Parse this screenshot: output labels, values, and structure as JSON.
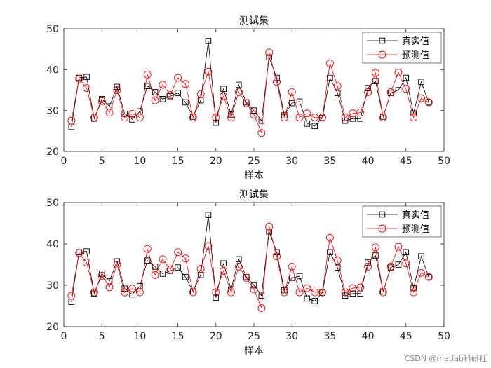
{
  "watermark": "CSDN @matlab科研社",
  "chart_data": [
    {
      "type": "line",
      "title": "测试集",
      "xlabel": "样本",
      "ylabel": "",
      "xlim": [
        0,
        50
      ],
      "ylim": [
        20,
        50
      ],
      "xticks": [
        0,
        5,
        10,
        15,
        20,
        25,
        30,
        35,
        40,
        45,
        50
      ],
      "yticks": [
        20,
        30,
        40,
        50
      ],
      "legend_position": "top-right",
      "x": [
        1,
        2,
        3,
        4,
        5,
        6,
        7,
        8,
        9,
        10,
        11,
        12,
        13,
        14,
        15,
        16,
        17,
        18,
        19,
        20,
        21,
        22,
        23,
        24,
        25,
        26,
        27,
        28,
        29,
        30,
        31,
        32,
        33,
        34,
        35,
        36,
        37,
        38,
        39,
        40,
        41,
        42,
        43,
        44,
        45,
        46,
        47,
        48
      ],
      "series": [
        {
          "name": "真实值",
          "color": "#000000",
          "marker": "square",
          "values": [
            26.0,
            38.0,
            38.2,
            28.0,
            32.8,
            31.0,
            35.8,
            29.2,
            27.8,
            29.8,
            36.0,
            34.5,
            32.8,
            33.5,
            34.3,
            32.0,
            28.5,
            32.5,
            47.0,
            27.0,
            35.3,
            29.0,
            36.3,
            32.0,
            30.0,
            27.5,
            43.0,
            38.0,
            28.8,
            31.8,
            32.2,
            26.8,
            26.2,
            28.2,
            38.0,
            34.3,
            27.5,
            28.0,
            28.0,
            35.5,
            37.2,
            28.5,
            34.3,
            35.0,
            38.0,
            29.3,
            37.0,
            32.0
          ]
        },
        {
          "name": "预测值",
          "color": "#ff0000",
          "marker": "circle",
          "values": [
            27.5,
            37.8,
            35.5,
            28.3,
            32.3,
            29.5,
            35.0,
            28.3,
            29.2,
            28.3,
            38.8,
            32.5,
            36.3,
            33.8,
            38.0,
            36.5,
            28.3,
            34.0,
            39.5,
            28.3,
            33.5,
            28.3,
            34.5,
            31.8,
            29.0,
            24.5,
            44.2,
            37.0,
            28.3,
            34.5,
            28.3,
            29.3,
            28.3,
            28.3,
            41.5,
            36.0,
            28.3,
            29.3,
            29.5,
            34.5,
            39.2,
            28.3,
            34.5,
            39.3,
            35.3,
            28.3,
            33.0,
            32.0
          ]
        }
      ]
    },
    {
      "type": "line",
      "title": "测试集",
      "xlabel": "样本",
      "ylabel": "",
      "xlim": [
        0,
        50
      ],
      "ylim": [
        20,
        50
      ],
      "xticks": [
        0,
        5,
        10,
        15,
        20,
        25,
        30,
        35,
        40,
        45,
        50
      ],
      "yticks": [
        20,
        30,
        40,
        50
      ],
      "legend_position": "top-right",
      "x": [
        1,
        2,
        3,
        4,
        5,
        6,
        7,
        8,
        9,
        10,
        11,
        12,
        13,
        14,
        15,
        16,
        17,
        18,
        19,
        20,
        21,
        22,
        23,
        24,
        25,
        26,
        27,
        28,
        29,
        30,
        31,
        32,
        33,
        34,
        35,
        36,
        37,
        38,
        39,
        40,
        41,
        42,
        43,
        44,
        45,
        46,
        47,
        48
      ],
      "series": [
        {
          "name": "真实值",
          "color": "#000000",
          "marker": "square",
          "values": [
            26.0,
            38.0,
            38.2,
            28.0,
            32.8,
            31.0,
            35.8,
            29.2,
            27.8,
            29.8,
            36.0,
            34.5,
            32.8,
            33.5,
            34.3,
            32.0,
            28.5,
            32.5,
            47.0,
            27.0,
            35.3,
            29.0,
            36.3,
            32.0,
            30.0,
            27.5,
            43.0,
            38.0,
            28.8,
            31.8,
            32.2,
            26.8,
            26.2,
            28.2,
            38.0,
            34.3,
            27.5,
            28.0,
            28.0,
            35.5,
            37.2,
            28.5,
            34.3,
            35.0,
            38.0,
            29.3,
            37.0,
            32.0
          ]
        },
        {
          "name": "预测值",
          "color": "#ff0000",
          "marker": "circle",
          "values": [
            27.5,
            37.8,
            35.5,
            28.3,
            32.3,
            29.5,
            35.0,
            28.3,
            29.2,
            28.3,
            38.8,
            32.5,
            36.3,
            33.8,
            38.0,
            36.5,
            28.3,
            34.0,
            39.5,
            28.3,
            33.5,
            28.3,
            34.5,
            31.8,
            29.0,
            24.5,
            44.2,
            37.0,
            28.3,
            34.5,
            28.3,
            29.3,
            28.3,
            28.3,
            41.5,
            36.0,
            28.3,
            29.3,
            29.5,
            34.5,
            39.2,
            28.3,
            34.5,
            39.3,
            35.3,
            28.3,
            33.0,
            32.0
          ]
        }
      ]
    }
  ]
}
